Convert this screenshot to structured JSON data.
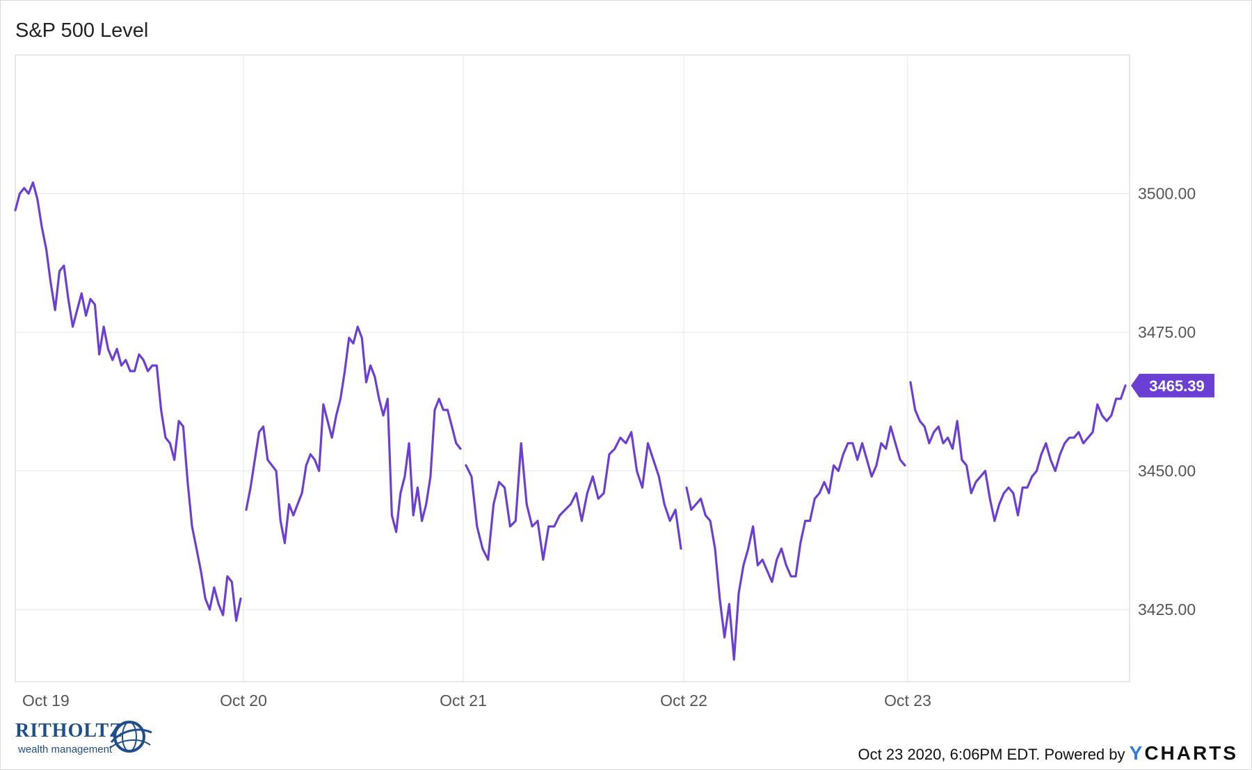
{
  "chart_data": {
    "type": "line",
    "title": "S&P 500 Level",
    "x_ticks": [
      "Oct 19",
      "Oct 20",
      "Oct 21",
      "Oct 22",
      "Oct 23"
    ],
    "y_ticks": [
      "3425.00",
      "3450.00",
      "3475.00",
      "3500.00"
    ],
    "ylim": [
      3412,
      3525
    ],
    "grid": true,
    "last_value_label": "3465.39",
    "colors": {
      "line": "#6b3fd4",
      "grid": "#e6e6e6",
      "axis": "#cfcfcf"
    },
    "series": [
      {
        "color": "#6b3fd4",
        "days": [
          {
            "label": "Oct 19",
            "values": [
              3497,
              3500,
              3501,
              3500,
              3502,
              3499,
              3494,
              3490,
              3484,
              3479,
              3486,
              3487,
              3481,
              3476,
              3479,
              3482,
              3478,
              3481,
              3480,
              3471,
              3476,
              3472,
              3470,
              3472,
              3469,
              3470,
              3468,
              3468,
              3471,
              3470,
              3468,
              3469,
              3469,
              3461,
              3456,
              3455,
              3452,
              3459,
              3458,
              3448,
              3440,
              3436,
              3432,
              3427,
              3425,
              3429,
              3426,
              3424,
              3431,
              3430,
              3423,
              3427
            ]
          },
          {
            "label": "Oct 20",
            "values": [
              3443,
              3447,
              3452,
              3457,
              3458,
              3452,
              3451,
              3450,
              3441,
              3437,
              3444,
              3442,
              3444,
              3446,
              3451,
              3453,
              3452,
              3450,
              3462,
              3459,
              3456,
              3460,
              3463,
              3468,
              3474,
              3473,
              3476,
              3474,
              3466,
              3469,
              3467,
              3463,
              3460,
              3463,
              3442,
              3439,
              3446,
              3449,
              3455,
              3442,
              3447,
              3441,
              3444,
              3449,
              3461,
              3463,
              3461,
              3461,
              3458,
              3455,
              3454
            ]
          },
          {
            "label": "Oct 21",
            "values": [
              3451,
              3449,
              3440,
              3436,
              3434,
              3444,
              3448,
              3447,
              3440,
              3441,
              3455,
              3444,
              3440,
              3441,
              3434,
              3440,
              3440,
              3442,
              3443,
              3444,
              3446,
              3441,
              3446,
              3449,
              3445,
              3446,
              3453,
              3454,
              3456,
              3455,
              3457,
              3450,
              3447,
              3455,
              3452,
              3449,
              3444,
              3441,
              3443,
              3436
            ]
          },
          {
            "label": "Oct 22",
            "values": [
              3447,
              3443,
              3444,
              3445,
              3442,
              3441,
              3436,
              3427,
              3420,
              3426,
              3416,
              3428,
              3433,
              3436,
              3440,
              3433,
              3434,
              3432,
              3430,
              3434,
              3436,
              3433,
              3431,
              3431,
              3437,
              3441,
              3441,
              3445,
              3446,
              3448,
              3446,
              3451,
              3450,
              3453,
              3455,
              3455,
              3452,
              3455,
              3452,
              3449,
              3451,
              3455,
              3454,
              3458,
              3455,
              3452,
              3451
            ]
          },
          {
            "label": "Oct 23",
            "values": [
              3466,
              3461,
              3459,
              3458,
              3455,
              3457,
              3458,
              3455,
              3456,
              3454,
              3459,
              3452,
              3451,
              3446,
              3448,
              3449,
              3450,
              3445,
              3441,
              3444,
              3446,
              3447,
              3446,
              3442,
              3447,
              3447,
              3449,
              3450,
              3453,
              3455,
              3452,
              3450,
              3453,
              3455,
              3456,
              3456,
              3457,
              3455,
              3456,
              3457,
              3462,
              3460,
              3459,
              3460,
              3463,
              3463,
              3465.39
            ]
          }
        ]
      }
    ]
  },
  "footer": {
    "timestamp": "Oct 23 2020, 6:06PM EDT. Powered by",
    "brand_y": "Y",
    "brand_rest": "CHARTS"
  },
  "logo": {
    "name": "RITHOLTZ",
    "sub": "wealth management"
  }
}
